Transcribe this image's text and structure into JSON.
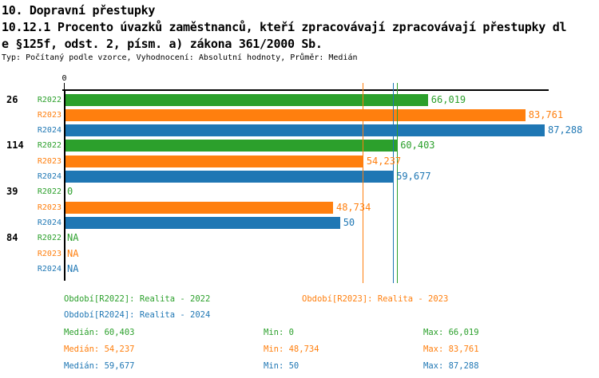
{
  "header": {
    "chapter": "10. Dopravní přestupky",
    "title_line1": "10.12.1 Procento úvazků zaměstnanců, kteří zpracovávají zpracovávají přestupky dl",
    "title_line2": "e §125f, odst. 2, písm. a) zákona 361/2000 Sb.",
    "meta": "Typ: Počítaný podle vzorce, Vyhodnocení: Absolutní hodnoty, Průměr: Medián"
  },
  "colors": {
    "R2022": "#2ca02c",
    "R2023": "#ff7f0e",
    "R2024": "#1f77b4",
    "axis": "#000000"
  },
  "chart_data": {
    "type": "bar",
    "orientation": "horizontal",
    "xlim": [
      0,
      87.288
    ],
    "x_ticks": [
      {
        "value": 0,
        "label": "0"
      }
    ],
    "grid": false,
    "series_names": [
      "R2022",
      "R2023",
      "R2024"
    ],
    "groups": [
      {
        "label": "26",
        "values": [
          66.019,
          83.761,
          87.288
        ],
        "display": [
          "66,019",
          "83,761",
          "87,288"
        ]
      },
      {
        "label": "114",
        "values": [
          60.403,
          54.237,
          59.677
        ],
        "display": [
          "60,403",
          "54,237",
          "59,677"
        ]
      },
      {
        "label": "39",
        "values": [
          0,
          48.734,
          50
        ],
        "display": [
          "0",
          "48,734",
          "50"
        ]
      },
      {
        "label": "84",
        "values": [
          null,
          null,
          null
        ],
        "display": [
          "NA",
          "NA",
          "NA"
        ]
      }
    ],
    "median_lines": [
      {
        "series": "R2022",
        "value": 60.403
      },
      {
        "series": "R2023",
        "value": 54.237
      },
      {
        "series": "R2024",
        "value": 59.677
      }
    ]
  },
  "legend": {
    "periods": [
      {
        "series": "R2022",
        "text": "Období[R2022]: Realita - 2022"
      },
      {
        "series": "R2023",
        "text": "Období[R2023]: Realita - 2023"
      },
      {
        "series": "R2024",
        "text": "Období[R2024]: Realita - 2024"
      }
    ],
    "stats": [
      {
        "series": "R2022",
        "median": "Medián: 60,403",
        "min": "Min: 0",
        "max": "Max: 66,019"
      },
      {
        "series": "R2023",
        "median": "Medián: 54,237",
        "min": "Min: 48,734",
        "max": "Max: 83,761"
      },
      {
        "series": "R2024",
        "median": "Medián: 59,677",
        "min": "Min: 50",
        "max": "Max: 87,288"
      }
    ]
  }
}
